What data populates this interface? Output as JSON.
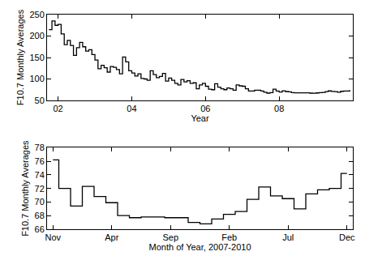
{
  "chart_data": [
    {
      "type": "line",
      "line_style": "steps",
      "color": "#000000",
      "x_label": "Year",
      "y_label": "F10.7 Monthly Averages",
      "x": [
        2001.75,
        2001.833,
        2001.917,
        2002.0,
        2002.083,
        2002.167,
        2002.25,
        2002.333,
        2002.417,
        2002.5,
        2002.583,
        2002.667,
        2002.75,
        2002.833,
        2002.917,
        2003.0,
        2003.083,
        2003.167,
        2003.25,
        2003.333,
        2003.417,
        2003.5,
        2003.583,
        2003.667,
        2003.75,
        2003.833,
        2003.917,
        2004.0,
        2004.083,
        2004.167,
        2004.25,
        2004.333,
        2004.417,
        2004.5,
        2004.583,
        2004.667,
        2004.75,
        2004.833,
        2004.917,
        2005.0,
        2005.083,
        2005.167,
        2005.25,
        2005.333,
        2005.417,
        2005.5,
        2005.583,
        2005.667,
        2005.75,
        2005.833,
        2005.917,
        2006.0,
        2006.083,
        2006.167,
        2006.25,
        2006.333,
        2006.417,
        2006.5,
        2006.583,
        2006.667,
        2006.75,
        2006.833,
        2006.917,
        2007.0,
        2007.083,
        2007.167,
        2007.25,
        2007.333,
        2007.417,
        2007.5,
        2007.583,
        2007.667,
        2007.75,
        2007.833,
        2007.917,
        2008.0,
        2008.083,
        2008.167,
        2008.25,
        2008.333,
        2008.417,
        2008.5,
        2008.583,
        2008.667,
        2008.75,
        2008.833,
        2008.917,
        2009.0,
        2009.083,
        2009.167,
        2009.25,
        2009.333,
        2009.417,
        2009.5,
        2009.583,
        2009.667,
        2009.75,
        2009.833,
        2009.917
      ],
      "values": [
        215,
        235,
        225,
        227,
        205,
        180,
        190,
        178,
        155,
        173,
        185,
        175,
        165,
        168,
        157,
        144,
        124,
        132,
        126,
        116,
        129,
        127,
        122,
        112,
        151,
        140,
        119,
        114,
        107,
        112,
        101,
        100,
        97,
        119,
        110,
        103,
        106,
        113,
        95,
        102,
        97,
        90,
        86,
        99,
        93,
        96,
        90,
        91,
        77,
        86,
        90,
        83,
        76,
        75,
        89,
        81,
        77,
        75,
        79,
        77,
        74,
        86,
        84,
        83,
        77,
        72,
        72,
        74,
        74,
        72,
        69,
        67,
        68,
        76.2,
        72.0,
        69.4,
        72.3,
        70.8,
        69.9,
        68.0,
        67.7,
        67.8,
        67.8,
        67.7,
        67.7,
        67.0,
        66.8,
        67.5,
        68.2,
        68.6,
        70.4,
        72.2,
        70.9,
        70.5,
        69.0,
        71.2,
        71.8,
        72.0,
        74.2
      ],
      "xlim": [
        2001.7,
        2010.0
      ],
      "xticks": [
        {
          "value": 2002,
          "label": "02"
        },
        {
          "value": 2004,
          "label": "04"
        },
        {
          "value": 2006,
          "label": "06"
        },
        {
          "value": 2008,
          "label": "08"
        }
      ],
      "ylim": [
        50,
        250
      ],
      "yticks": [
        50,
        100,
        150,
        200,
        250
      ]
    },
    {
      "type": "line",
      "line_style": "steps",
      "color": "#000000",
      "x_label": "Month of Year, 2007-2010",
      "y_label": "F10.7 Monthly Averages",
      "categories": [
        "Nov",
        null,
        null,
        null,
        null,
        "Apr",
        null,
        null,
        null,
        null,
        "Sep",
        null,
        null,
        null,
        null,
        "Feb",
        null,
        null,
        null,
        null,
        "Jul",
        null,
        null,
        null,
        null,
        "Dec"
      ],
      "values": [
        76.2,
        72.0,
        69.4,
        72.3,
        70.8,
        69.9,
        68.0,
        67.7,
        67.8,
        67.8,
        67.7,
        67.7,
        67.0,
        66.8,
        67.5,
        68.2,
        68.6,
        70.4,
        72.2,
        70.9,
        70.5,
        69.0,
        71.2,
        71.8,
        72.0,
        74.2
      ],
      "ylim": [
        66,
        78
      ],
      "yticks": [
        66,
        68,
        70,
        72,
        74,
        76,
        78
      ]
    }
  ]
}
